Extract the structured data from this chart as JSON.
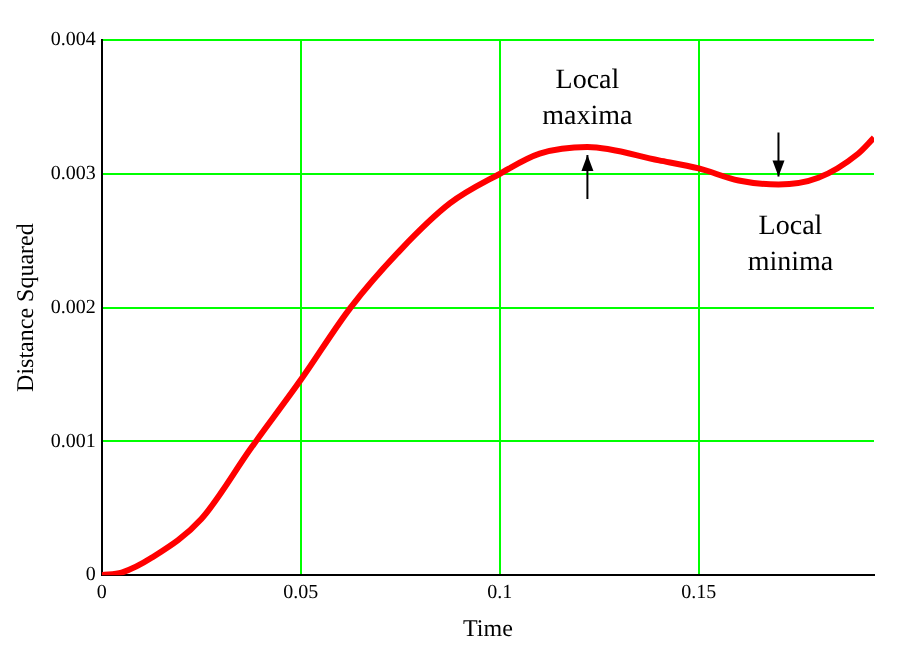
{
  "chart_data": {
    "type": "line",
    "xlabel": "Time",
    "ylabel": "Distance Squared",
    "x": [
      0,
      0.005,
      0.0125,
      0.025,
      0.0375,
      0.05,
      0.0625,
      0.075,
      0.0875,
      0.1,
      0.11,
      0.122,
      0.14,
      0.15,
      0.16,
      0.17,
      0.18,
      0.19,
      0.194
    ],
    "series": [
      {
        "color": "#ff0000",
        "values": [
          0,
          2e-05,
          0.00013,
          0.00042,
          0.00095,
          0.00146,
          0.002,
          0.00243,
          0.00278,
          0.003,
          0.00315,
          0.0032,
          0.0031,
          0.00304,
          0.00295,
          0.00292,
          0.00297,
          0.00315,
          0.00327
        ]
      }
    ],
    "xlim": [
      0,
      0.194
    ],
    "xticks": [
      0,
      0.05,
      0.1,
      0.15
    ],
    "ylim": [
      0,
      0.004
    ],
    "yticks": [
      0,
      0.001,
      0.002,
      0.003,
      0.004
    ],
    "grid": true,
    "legend": false,
    "marker": "none",
    "line_style": "solid",
    "annotations": [
      {
        "text": "Local maxima",
        "x": 0.122,
        "y": 0.0032
      },
      {
        "text": "Local minima",
        "x": 0.17,
        "y": 0.00292
      }
    ]
  }
}
